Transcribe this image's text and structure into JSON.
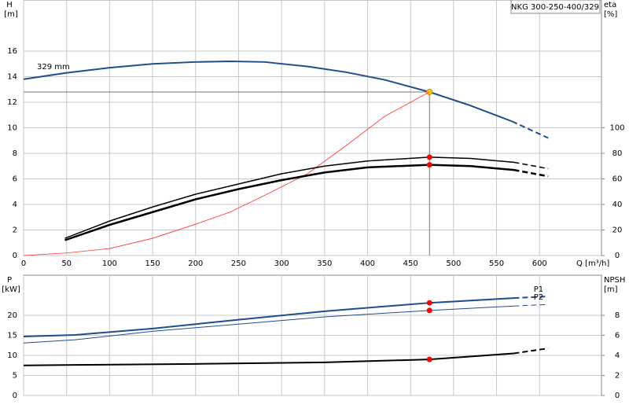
{
  "chart_data": [
    {
      "type": "line",
      "title": "NKG 300-250-400/329",
      "xlabel": "Q [m³/h]",
      "ylabel": "H",
      "yunit": "[m]",
      "y2label": "eta",
      "y2unit": "[%]",
      "xlim": [
        0,
        672
      ],
      "xticks": [
        0,
        50,
        100,
        150,
        200,
        250,
        300,
        350,
        400,
        450,
        500,
        550,
        600
      ],
      "ylim": [
        0,
        20
      ],
      "yticks": [
        0,
        2,
        4,
        6,
        8,
        10,
        12,
        14,
        16
      ],
      "y2lim": [
        0,
        200
      ],
      "y2ticks": [
        0,
        20,
        40,
        60,
        80,
        100
      ],
      "grid": true,
      "duty_x": 472,
      "series": [
        {
          "name": "329 mm",
          "color": "#1f4e8c",
          "width": 2,
          "dashed_from": 568,
          "marker_color": "#ffcc00",
          "x": [
            0,
            50,
            100,
            150,
            200,
            240,
            280,
            330,
            375,
            420,
            472,
            517,
            568,
            610
          ],
          "values": [
            13.8,
            14.3,
            14.7,
            15.0,
            15.15,
            15.2,
            15.15,
            14.8,
            14.35,
            13.75,
            12.8,
            11.8,
            10.5,
            9.2
          ]
        },
        {
          "color": "#ff3333",
          "width": 0.8,
          "x": [
            0,
            50,
            100,
            150,
            200,
            240,
            280,
            330,
            375,
            420,
            472
          ],
          "values": [
            0,
            0.2,
            0.55,
            1.35,
            2.45,
            3.4,
            4.7,
            6.4,
            8.6,
            10.9,
            12.8
          ]
        },
        {
          "color": "#000000",
          "width": 1.5,
          "axis": "y2",
          "dashed_from": 570,
          "marker_color": "#ff0000",
          "x": [
            48,
            100,
            150,
            200,
            250,
            300,
            350,
            400,
            472,
            520,
            570,
            610
          ],
          "values": [
            13.5,
            27,
            38,
            48,
            56,
            64,
            70,
            74,
            77,
            76,
            73,
            68
          ]
        },
        {
          "color": "#000000",
          "width": 2.5,
          "axis": "y2",
          "dashed_from": 570,
          "marker_color": "#ff0000",
          "x": [
            48,
            100,
            150,
            200,
            250,
            300,
            350,
            400,
            472,
            520,
            570,
            610
          ],
          "values": [
            12,
            24,
            34,
            44,
            52,
            59,
            65,
            69,
            71,
            70,
            67,
            62
          ]
        }
      ]
    },
    {
      "type": "line",
      "ylabel": "P",
      "yunit": "[kW]",
      "y2label": "NPSH",
      "y2unit": "[m]",
      "xlim": [
        0,
        672
      ],
      "xticks": [
        0,
        50,
        100,
        150,
        200,
        250,
        300,
        350,
        400,
        450,
        500,
        550,
        600
      ],
      "ylim": [
        0,
        30
      ],
      "yticks": [
        0,
        5,
        10,
        15,
        20
      ],
      "y2lim": [
        0,
        12
      ],
      "y2ticks": [
        0,
        2,
        4,
        6,
        8
      ],
      "grid": true,
      "duty_x": 472,
      "series": [
        {
          "name": "P1",
          "color": "#1f4e8c",
          "width": 2,
          "dashed_from": 570,
          "marker_color": "#ff0000",
          "x": [
            0,
            60,
            150,
            250,
            350,
            472,
            570,
            610
          ],
          "values": [
            14.7,
            15.1,
            16.7,
            18.9,
            21.0,
            23.1,
            24.3,
            24.7
          ]
        },
        {
          "name": "P2",
          "color": "#1f4e8c",
          "width": 1,
          "dashed_from": 570,
          "marker_color": "#ff0000",
          "x": [
            0,
            60,
            150,
            250,
            350,
            472,
            570,
            610
          ],
          "values": [
            13.1,
            13.9,
            16.0,
            17.8,
            19.6,
            21.2,
            22.3,
            22.7
          ]
        },
        {
          "color": "#000000",
          "width": 2,
          "axis": "y2",
          "dashed_from": 570,
          "marker_color": "#ff0000",
          "x": [
            0,
            60,
            200,
            350,
            472,
            570,
            610
          ],
          "values": [
            3.0,
            3.05,
            3.15,
            3.3,
            3.6,
            4.2,
            4.7
          ]
        }
      ]
    }
  ]
}
